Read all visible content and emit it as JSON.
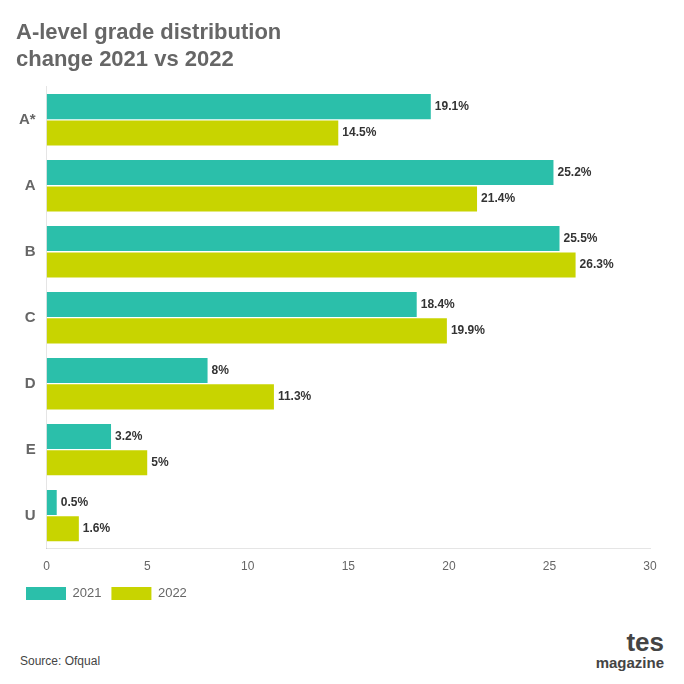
{
  "chart_data": {
    "type": "bar",
    "orientation": "horizontal",
    "title": "A-level grade distribution\nchange 2021 vs 2022",
    "categories": [
      "A*",
      "A",
      "B",
      "C",
      "D",
      "E",
      "U"
    ],
    "series": [
      {
        "name": "2021",
        "color": "#2bbfaa",
        "values": [
          19.1,
          25.2,
          25.5,
          18.4,
          8.0,
          3.2,
          0.5
        ],
        "value_labels": [
          "19.1%",
          "25.2%",
          "25.5%",
          "18.4%",
          "8%",
          "3.2%",
          "0.5%"
        ]
      },
      {
        "name": "2022",
        "color": "#c8d400",
        "values": [
          14.5,
          21.4,
          26.3,
          19.9,
          11.3,
          5.0,
          1.6
        ],
        "value_labels": [
          "14.5%",
          "21.4%",
          "26.3%",
          "19.9%",
          "11.3%",
          "5%",
          "1.6%"
        ]
      }
    ],
    "xlim": [
      0,
      30
    ],
    "xticks": [
      0,
      5,
      10,
      15,
      20,
      25,
      30
    ],
    "data_labels": true,
    "grid": false,
    "legend": "lower left",
    "annotations": [
      "Source: Ofqual",
      "tes",
      "magazine"
    ]
  }
}
